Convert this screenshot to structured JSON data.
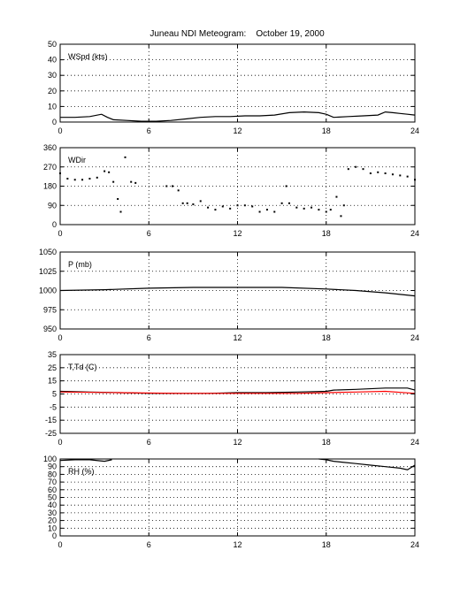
{
  "title": "Juneau NDI Meteogram:    October 19, 2000",
  "chart_data": [
    {
      "type": "line",
      "label": "WSpd (kts)",
      "xlim": [
        0,
        24
      ],
      "xticks": [
        0,
        6,
        12,
        18,
        24
      ],
      "ylim": [
        0,
        50
      ],
      "yticks": [
        0,
        10,
        20,
        30,
        40,
        50
      ],
      "grid": true,
      "series": [
        {
          "color": "#000000",
          "style": "line",
          "x": [
            0,
            1,
            2,
            2.8,
            3.2,
            3.6,
            4.5,
            5.5,
            6.5,
            7.5,
            8.5,
            9.5,
            10.5,
            11.5,
            12.5,
            13.5,
            14.5,
            15.5,
            16.5,
            17.5,
            18,
            18.5,
            19.5,
            20.5,
            21.5,
            22,
            22.5,
            23,
            23.5,
            24
          ],
          "y": [
            3,
            3,
            3.5,
            5,
            3,
            1.5,
            1,
            0.5,
            0.5,
            1,
            2,
            3,
            3.5,
            3.5,
            4,
            4,
            4.5,
            6,
            6.5,
            6,
            5,
            3,
            3.5,
            4,
            4.5,
            6.5,
            6,
            5.5,
            5,
            4.5
          ]
        }
      ]
    },
    {
      "type": "scatter",
      "label": "WDir",
      "xlim": [
        0,
        24
      ],
      "xticks": [
        0,
        6,
        12,
        18,
        24
      ],
      "ylim": [
        0,
        360
      ],
      "yticks": [
        0,
        90,
        180,
        270,
        360
      ],
      "grid": true,
      "series": [
        {
          "color": "#000000",
          "style": "dots",
          "x": [
            0,
            0.5,
            1,
            1.5,
            2,
            2.5,
            3,
            3.3,
            3.6,
            3.9,
            4.1,
            4.4,
            4.8,
            5.1,
            7.2,
            7.6,
            8,
            8.3,
            8.6,
            9,
            9.5,
            10,
            10.5,
            11,
            11.5,
            12,
            12.5,
            13,
            13.5,
            14,
            14.5,
            15,
            15.3,
            15.5,
            16,
            16.5,
            17,
            17.5,
            18,
            18.3,
            18.7,
            19,
            19.2,
            19.5,
            20,
            20.5,
            21,
            21.5,
            22,
            22.5,
            23,
            23.5,
            24
          ],
          "y": [
            240,
            215,
            210,
            210,
            215,
            220,
            250,
            245,
            200,
            120,
            60,
            315,
            200,
            195,
            180,
            180,
            160,
            100,
            100,
            95,
            110,
            80,
            70,
            85,
            75,
            90,
            90,
            85,
            60,
            70,
            60,
            100,
            180,
            100,
            80,
            75,
            80,
            70,
            60,
            70,
            130,
            40,
            90,
            260,
            270,
            260,
            240,
            245,
            240,
            235,
            230,
            225,
            210
          ]
        }
      ]
    },
    {
      "type": "line",
      "label": "P (mb)",
      "xlim": [
        0,
        24
      ],
      "xticks": [
        0,
        6,
        12,
        18,
        24
      ],
      "ylim": [
        950,
        1050
      ],
      "yticks": [
        950,
        975,
        1000,
        1025,
        1050
      ],
      "grid": true,
      "series": [
        {
          "color": "#000000",
          "style": "line",
          "x": [
            0,
            3,
            6,
            9,
            12,
            15,
            18,
            20,
            22,
            24
          ],
          "y": [
            1000,
            1001,
            1003,
            1004,
            1004,
            1004,
            1002,
            1000,
            997,
            993
          ]
        }
      ]
    },
    {
      "type": "line",
      "label": "T,Td (C)",
      "xlim": [
        0,
        24
      ],
      "xticks": [
        0,
        6,
        12,
        18,
        24
      ],
      "ylim": [
        -25,
        35
      ],
      "yticks": [
        -25,
        -15,
        -5,
        5,
        15,
        25,
        35
      ],
      "grid": true,
      "series": [
        {
          "color": "#000000",
          "style": "line",
          "x": [
            0,
            2,
            4,
            6,
            8,
            10,
            12,
            14,
            16,
            18,
            18.5,
            20,
            22,
            23.5,
            24
          ],
          "y": [
            7,
            6.5,
            6,
            5.5,
            5.5,
            5.5,
            6,
            6,
            6.5,
            7,
            8,
            8.5,
            9.5,
            9.5,
            8
          ]
        },
        {
          "color": "#ff0000",
          "style": "line",
          "x": [
            0,
            4,
            8,
            12,
            16,
            18,
            20,
            22,
            24
          ],
          "y": [
            6.5,
            6,
            5.5,
            5.5,
            5.5,
            6,
            6.5,
            7,
            5.5
          ]
        }
      ]
    },
    {
      "type": "line",
      "label": "RH (%)",
      "xlim": [
        0,
        24
      ],
      "xticks": [
        0,
        6,
        12,
        18,
        24
      ],
      "ylim": [
        0,
        100
      ],
      "yticks": [
        0,
        10,
        20,
        30,
        40,
        50,
        60,
        70,
        80,
        90,
        100
      ],
      "grid": true,
      "series": [
        {
          "color": "#000000",
          "style": "line",
          "x": [
            0,
            1,
            2,
            3,
            3.5
          ],
          "y": [
            98,
            99,
            99,
            97,
            99
          ]
        },
        {
          "color": "#000000",
          "style": "line",
          "x": [
            17.5,
            18,
            18.5,
            19,
            20,
            21,
            22,
            23,
            23.5,
            24
          ],
          "y": [
            100,
            99,
            97,
            96,
            94,
            92,
            90,
            88,
            86,
            92
          ]
        }
      ]
    }
  ]
}
